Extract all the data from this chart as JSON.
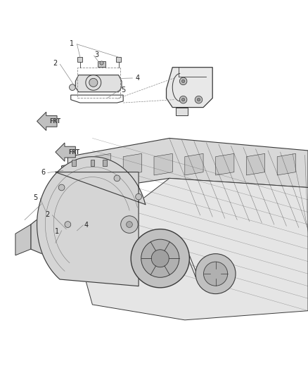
{
  "bg_color": "#ffffff",
  "line_color": "#3a3a3a",
  "light_line_color": "#888888",
  "label_color": "#222222",
  "fig_width": 4.38,
  "fig_height": 5.33,
  "dpi": 100
}
